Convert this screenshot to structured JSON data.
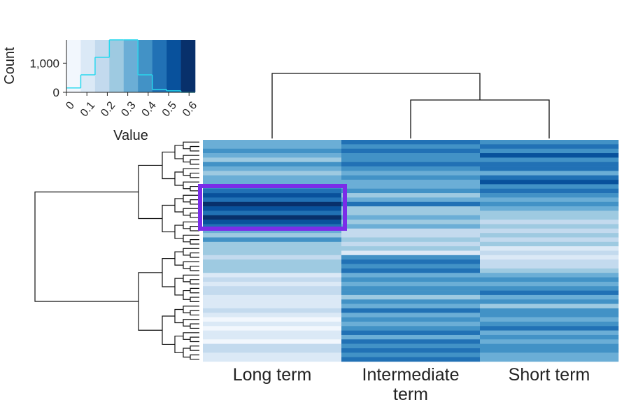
{
  "chart_data": [
    {
      "type": "heatmap",
      "columns": [
        {
          "label": "Long term",
          "values": [
            0.32,
            0.28,
            0.35,
            0.3,
            0.26,
            0.38,
            0.3,
            0.27,
            0.33,
            0.29,
            0.4,
            0.47,
            0.52,
            0.44,
            0.56,
            0.49,
            0.45,
            0.58,
            0.5,
            0.42,
            0.3,
            0.25,
            0.38,
            0.22,
            0.27,
            0.24,
            0.2,
            0.26,
            0.23,
            0.21,
            0.12,
            0.16,
            0.1,
            0.14,
            0.18,
            0.09,
            0.13,
            0.11,
            0.15,
            0.08,
            0.06,
            0.1,
            0.04,
            0.12,
            0.07,
            0.05,
            0.2,
            0.14,
            0.09,
            0.11
          ]
        },
        {
          "label": "Intermediate term",
          "values": [
            0.42,
            0.38,
            0.46,
            0.4,
            0.35,
            0.44,
            0.37,
            0.3,
            0.41,
            0.33,
            0.28,
            0.36,
            0.24,
            0.31,
            0.45,
            0.27,
            0.22,
            0.34,
            0.26,
            0.3,
            0.2,
            0.18,
            0.23,
            0.15,
            0.21,
            0.12,
            0.4,
            0.44,
            0.36,
            0.42,
            0.33,
            0.38,
            0.29,
            0.41,
            0.35,
            0.25,
            0.39,
            0.32,
            0.43,
            0.3,
            0.37,
            0.28,
            0.4,
            0.48,
            0.34,
            0.45,
            0.38,
            0.42,
            0.36,
            0.44
          ]
        },
        {
          "label": "Short term",
          "values": [
            0.38,
            0.45,
            0.4,
            0.5,
            0.36,
            0.42,
            0.47,
            0.33,
            0.44,
            0.52,
            0.39,
            0.46,
            0.35,
            0.3,
            0.41,
            0.28,
            0.22,
            0.26,
            0.2,
            0.24,
            0.18,
            0.25,
            0.15,
            0.21,
            0.12,
            0.17,
            0.1,
            0.14,
            0.19,
            0.22,
            0.34,
            0.4,
            0.29,
            0.36,
            0.42,
            0.31,
            0.38,
            0.27,
            0.35,
            0.4,
            0.3,
            0.37,
            0.44,
            0.28,
            0.39,
            0.33,
            0.41,
            0.36,
            0.3,
            0.32
          ]
        }
      ]
    },
    {
      "type": "histogram",
      "xlabel": "Value",
      "ylabel": "Count",
      "bins": [
        0,
        0.07,
        0.14,
        0.21,
        0.28,
        0.35,
        0.42,
        0.49,
        0.56,
        0.63
      ],
      "values": [
        150,
        600,
        1200,
        1800,
        1800,
        600,
        100,
        50,
        0
      ],
      "colors": [
        "#f2f7fd",
        "#dbe9f6",
        "#c3daee",
        "#9ecae1",
        "#6baed6",
        "#4292c6",
        "#2171b5",
        "#08519c",
        "#08306b"
      ],
      "line_color": "#29d8ee",
      "xlim": [
        0,
        0.63
      ],
      "xticks": [
        0,
        0.1,
        0.2,
        0.3,
        0.4,
        0.5,
        0.6
      ],
      "ylim": [
        0,
        1800
      ],
      "yticks": [
        0,
        {
          "value": 1000,
          "label": "1,000"
        }
      ]
    }
  ]
}
